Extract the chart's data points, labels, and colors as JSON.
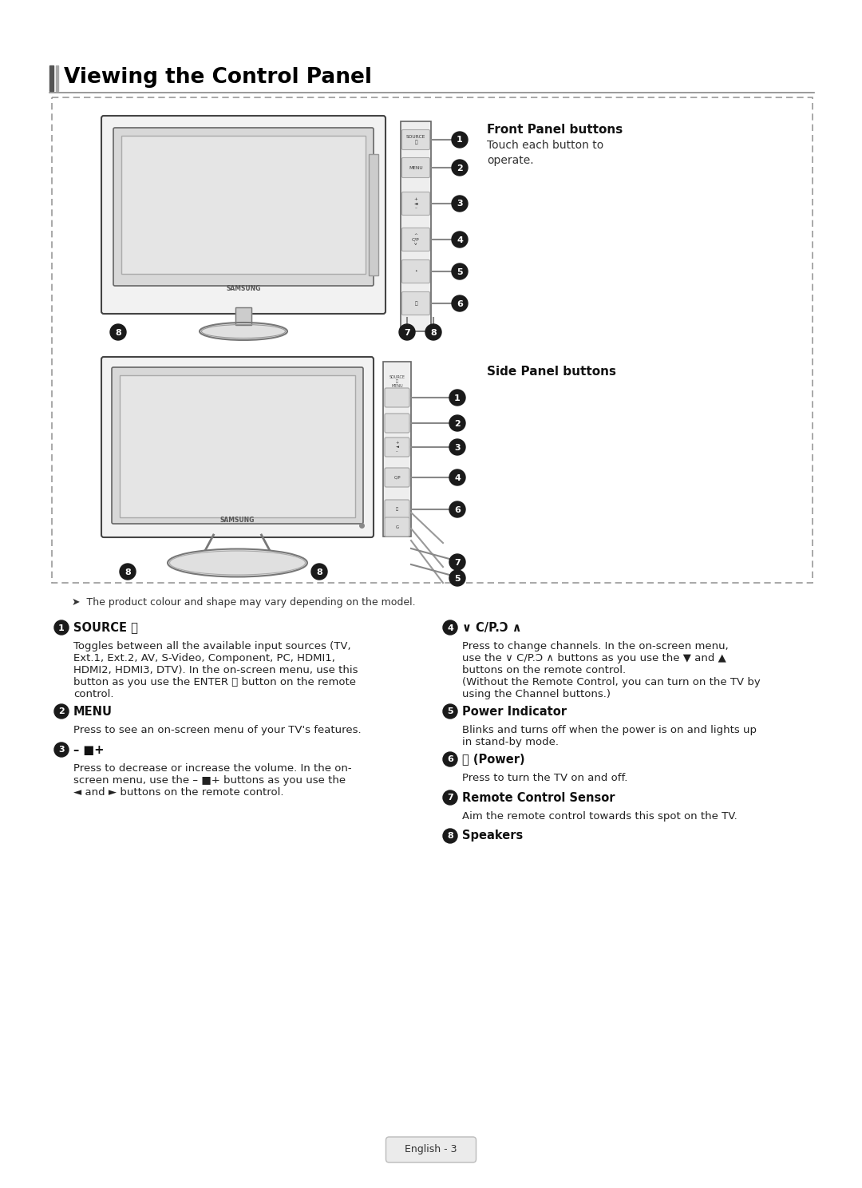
{
  "title": "Viewing the Control Panel",
  "page_bg": "#ffffff",
  "page_number_text": "English - 3",
  "front_panel_label": "Front Panel buttons",
  "front_panel_sublabel": "Touch each button to\noperate.",
  "side_panel_label": "Side Panel buttons",
  "note_text": "➤  The product colour and shape may vary depending on the model.",
  "desc1_title": "SOURCE ⭳",
  "desc1_body1": "Toggles between all the available input sources (TV,",
  "desc1_body2": "Ext.1, Ext.2, AV, S-Video, Component, PC, HDMI1,",
  "desc1_body3": "HDMI2, HDMI3, DTV). In the on-screen menu, use this",
  "desc1_body4": "button as you use the ENTER ⭳ button on the remote",
  "desc1_body5": "control.",
  "desc2_title": "MENU",
  "desc2_body": "Press to see an on-screen menu of your TV's features.",
  "desc3_title": "– ■+",
  "desc3_body1": "Press to decrease or increase the volume. In the on-",
  "desc3_body2": "screen menu, use the – ■+ buttons as you use the",
  "desc3_body3": "◄ and ► buttons on the remote control.",
  "desc4_title": "∨ C/P.Ɔ ∧",
  "desc4_body1": "Press to change channels. In the on-screen menu,",
  "desc4_body2": "use the ∨ C/P.Ɔ ∧ buttons as you use the ▼ and ▲",
  "desc4_body3": "buttons on the remote control.",
  "desc4_body4": "(Without the Remote Control, you can turn on the TV by",
  "desc4_body5": "using the Channel buttons.)",
  "desc5_title": "Power Indicator",
  "desc5_body1": "Blinks and turns off when the power is on and lights up",
  "desc5_body2": "in stand-by mode.",
  "desc6_title": "⏻ (Power)",
  "desc6_body": "Press to turn the TV on and off.",
  "desc7_title": "Remote Control Sensor",
  "desc7_body": "Aim the remote control towards this spot on the TV.",
  "desc8_title": "Speakers"
}
